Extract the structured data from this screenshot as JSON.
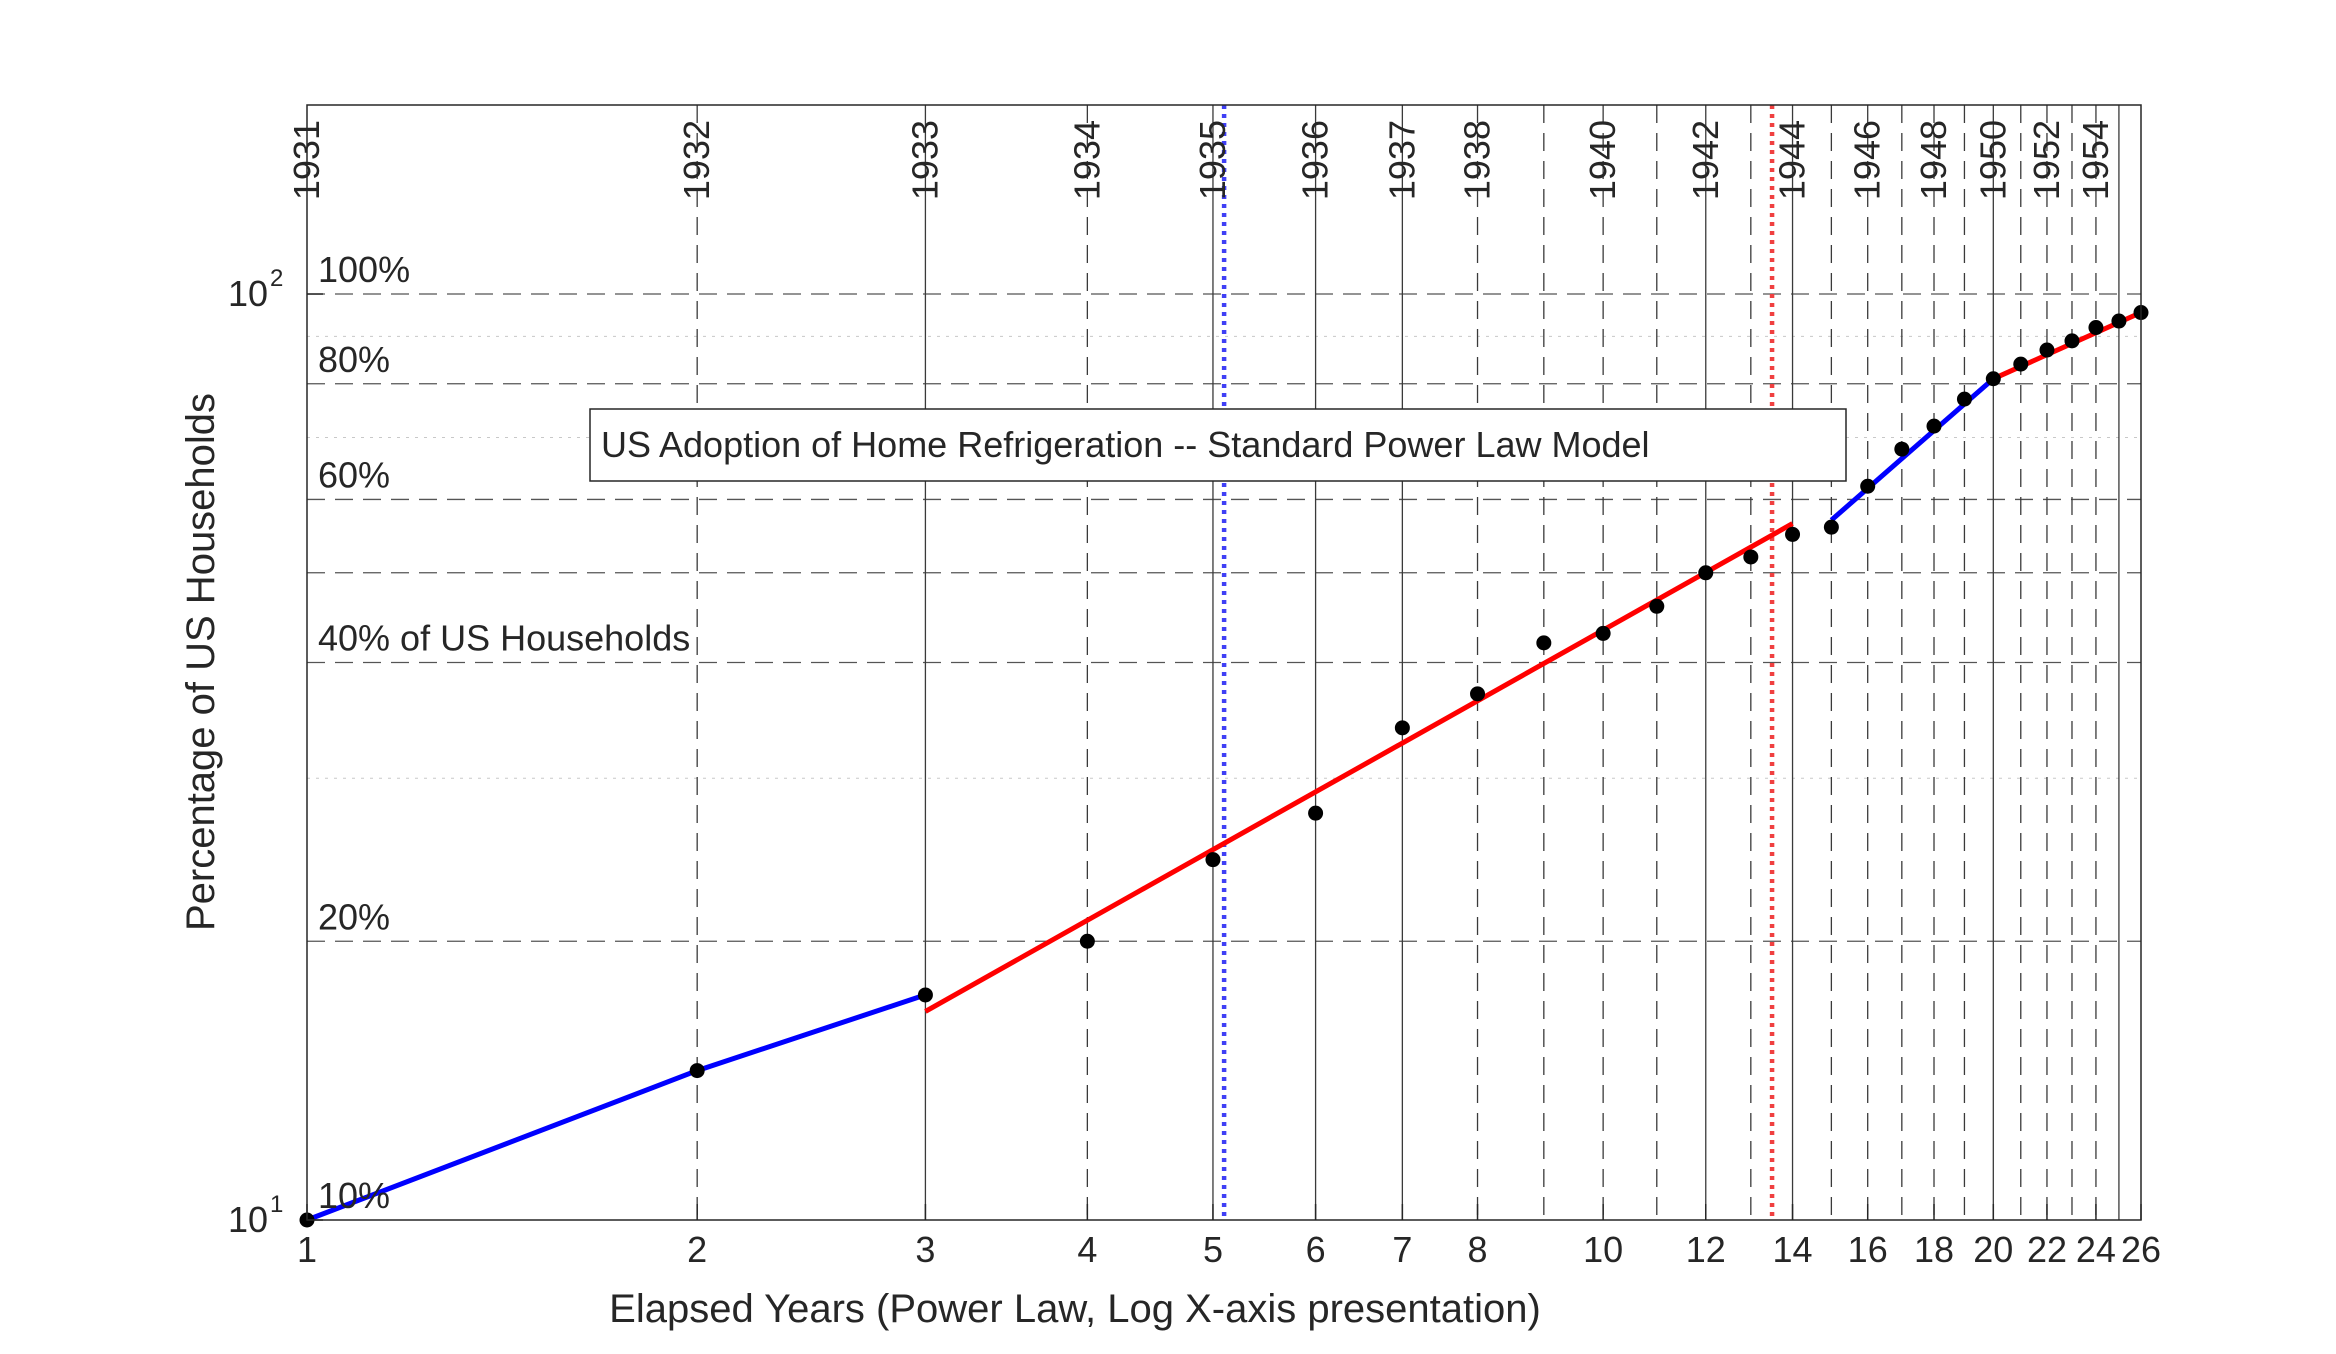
{
  "chart_data": {
    "type": "line",
    "title": "US Adoption of Home Refrigeration -- Standard Power Law Model",
    "xlabel": "Elapsed Years (Power Law, Log X-axis presentation)",
    "ylabel": "Percentage of US Households",
    "x_scale": "log",
    "y_scale": "log",
    "xlim": [
      1,
      26
    ],
    "ylim": [
      10,
      160
    ],
    "x_ticks": [
      1,
      2,
      3,
      4,
      5,
      6,
      7,
      8,
      10,
      12,
      14,
      16,
      18,
      20,
      22,
      24,
      26
    ],
    "x_tick_labels": [
      "1",
      "2",
      "3",
      "4",
      "5",
      "6",
      "7",
      "8",
      "10",
      "12",
      "14",
      "16",
      "18",
      "20",
      "22",
      "24",
      "26"
    ],
    "y_ticks": [
      {
        "value": 10,
        "base": "10",
        "exp": "1"
      },
      {
        "value": 100,
        "base": "10",
        "exp": "2"
      }
    ],
    "year_lines": [
      {
        "year": "1931",
        "x": 1,
        "style": "solid",
        "labeled": true
      },
      {
        "year": "1932",
        "x": 2,
        "style": "dashed",
        "labeled": true
      },
      {
        "year": "1933",
        "x": 3,
        "style": "solid",
        "labeled": true
      },
      {
        "year": "1934",
        "x": 4,
        "style": "dashed",
        "labeled": true
      },
      {
        "year": "1935",
        "x": 5,
        "style": "solid",
        "labeled": true
      },
      {
        "year": "1936",
        "x": 6,
        "style": "solid",
        "labeled": true
      },
      {
        "year": "1937",
        "x": 7,
        "style": "solid",
        "labeled": true
      },
      {
        "year": "1938",
        "x": 8,
        "style": "dashed",
        "labeled": true
      },
      {
        "year": "1939",
        "x": 9,
        "style": "dashed",
        "labeled": false
      },
      {
        "year": "1940",
        "x": 10,
        "style": "dashed",
        "labeled": true
      },
      {
        "year": "1941",
        "x": 11,
        "style": "dashed",
        "labeled": false
      },
      {
        "year": "1942",
        "x": 12,
        "style": "solid",
        "labeled": true
      },
      {
        "year": "1943",
        "x": 13,
        "style": "dashed",
        "labeled": false
      },
      {
        "year": "1944",
        "x": 14,
        "style": "solid",
        "labeled": true
      },
      {
        "year": "1945",
        "x": 15,
        "style": "dashed",
        "labeled": false
      },
      {
        "year": "1946",
        "x": 16,
        "style": "dashed",
        "labeled": true
      },
      {
        "year": "1947",
        "x": 17,
        "style": "dashed",
        "labeled": false
      },
      {
        "year": "1948",
        "x": 18,
        "style": "dashed",
        "labeled": true
      },
      {
        "year": "1949",
        "x": 19,
        "style": "dashed",
        "labeled": false
      },
      {
        "year": "1950",
        "x": 20,
        "style": "solid",
        "labeled": true
      },
      {
        "year": "1951",
        "x": 21,
        "style": "dashed",
        "labeled": false
      },
      {
        "year": "1952",
        "x": 22,
        "style": "dashed",
        "labeled": true
      },
      {
        "year": "1953",
        "x": 23,
        "style": "dashed",
        "labeled": false
      },
      {
        "year": "1954",
        "x": 24,
        "style": "dashed",
        "labeled": true
      },
      {
        "year": "1955",
        "x": 25,
        "style": "solid",
        "labeled": false
      },
      {
        "year": "1956",
        "x": 26,
        "style": "solid",
        "labeled": false
      }
    ],
    "pct_lines": [
      {
        "value": 100,
        "label": "100%",
        "style": "dashed"
      },
      {
        "value": 90,
        "label": "",
        "style": "dotted"
      },
      {
        "value": 80,
        "label": "80%",
        "style": "dashed"
      },
      {
        "value": 70,
        "label": "",
        "style": "dotted"
      },
      {
        "value": 60,
        "label": "60%",
        "style": "dashed"
      },
      {
        "value": 50,
        "label": "",
        "style": "dashed"
      },
      {
        "value": 40,
        "label": "40% of US Households",
        "style": "dashed"
      },
      {
        "value": 30,
        "label": "",
        "style": "dotted"
      },
      {
        "value": 20,
        "label": "20%",
        "style": "dashed"
      },
      {
        "value": 10,
        "label": "10%",
        "style": "none"
      }
    ],
    "reference_lines": [
      {
        "x": 5.1,
        "color": "#3f3ff5",
        "style": "dotted"
      },
      {
        "x": 13.5,
        "color": "#f04040",
        "style": "dotted"
      }
    ],
    "points": [
      {
        "x": 1,
        "y": 10
      },
      {
        "x": 2,
        "y": 14.5
      },
      {
        "x": 3,
        "y": 17.5
      },
      {
        "x": 4,
        "y": 20
      },
      {
        "x": 5,
        "y": 24.5
      },
      {
        "x": 6,
        "y": 27.5
      },
      {
        "x": 7,
        "y": 34
      },
      {
        "x": 8,
        "y": 37
      },
      {
        "x": 9,
        "y": 42
      },
      {
        "x": 10,
        "y": 43
      },
      {
        "x": 11,
        "y": 46
      },
      {
        "x": 12,
        "y": 50
      },
      {
        "x": 13,
        "y": 52
      },
      {
        "x": 14,
        "y": 55
      },
      {
        "x": 15,
        "y": 56
      },
      {
        "x": 16,
        "y": 62
      },
      {
        "x": 17,
        "y": 68
      },
      {
        "x": 18,
        "y": 72
      },
      {
        "x": 19,
        "y": 77
      },
      {
        "x": 20,
        "y": 81
      },
      {
        "x": 21,
        "y": 84
      },
      {
        "x": 22,
        "y": 87
      },
      {
        "x": 23,
        "y": 89
      },
      {
        "x": 24,
        "y": 92
      },
      {
        "x": 25,
        "y": 93.5
      },
      {
        "x": 26,
        "y": 95.5
      }
    ],
    "series": [
      {
        "color": "#0000ff",
        "points": [
          [
            1,
            10
          ],
          [
            2,
            14.5
          ],
          [
            3,
            17.5
          ]
        ]
      },
      {
        "color": "#ff0000",
        "points": [
          [
            3,
            16.8
          ],
          [
            14,
            56.5
          ]
        ]
      },
      {
        "color": "#0000ff",
        "points": [
          [
            15,
            57
          ],
          [
            20,
            81
          ]
        ]
      },
      {
        "color": "#ff0000",
        "points": [
          [
            20,
            81
          ],
          [
            26,
            95.5
          ]
        ]
      }
    ],
    "grid": true
  }
}
